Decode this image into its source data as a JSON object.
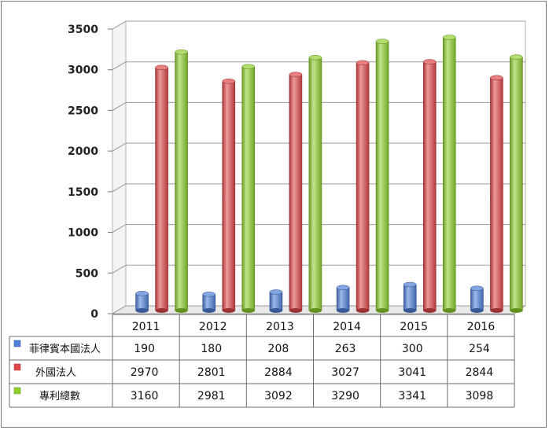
{
  "chart_data": {
    "type": "bar",
    "categories": [
      "2011",
      "2012",
      "2013",
      "2014",
      "2015",
      "2016"
    ],
    "series": [
      {
        "name": "菲律賓本國法人",
        "values": [
          190,
          180,
          208,
          263,
          300,
          254
        ],
        "color": "#4f7fd8"
      },
      {
        "name": "外國法人",
        "values": [
          2970,
          2801,
          2884,
          3027,
          3041,
          2844
        ],
        "color": "#e0474a"
      },
      {
        "name": "專利總數",
        "values": [
          3160,
          2981,
          3092,
          3290,
          3341,
          3098
        ],
        "color": "#8fcf2e"
      }
    ],
    "yticks": [
      0,
      500,
      1000,
      1500,
      2000,
      2500,
      3000,
      3500
    ],
    "ylim": [
      0,
      3500
    ],
    "grid": true,
    "legend": "data-table"
  }
}
